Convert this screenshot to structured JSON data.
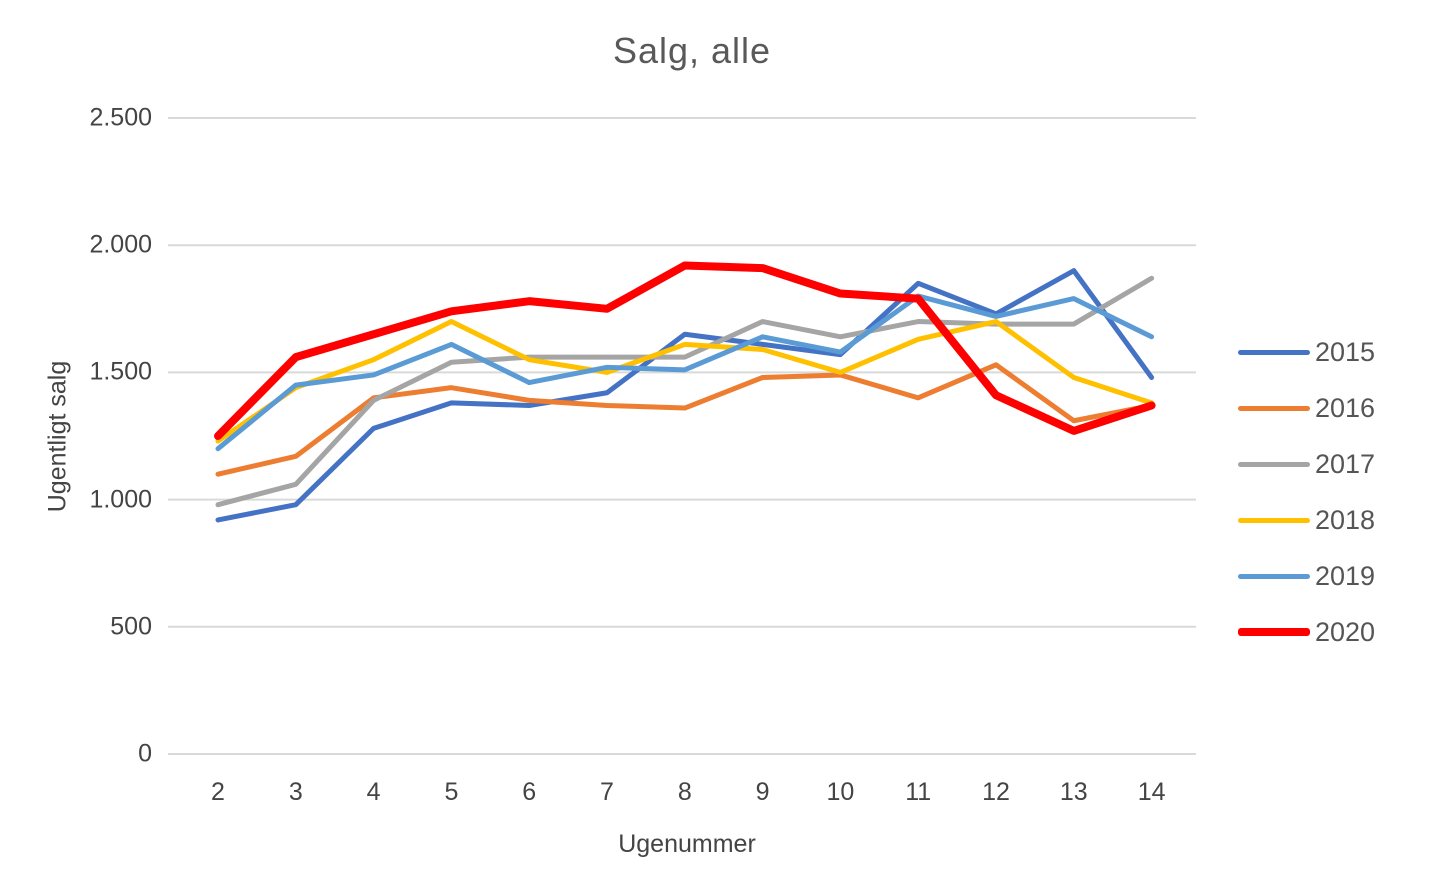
{
  "chart_data": {
    "type": "line",
    "title": "Salg, alle",
    "xlabel": "Ugenummer",
    "ylabel": "Ugentligt salg",
    "x": [
      2,
      3,
      4,
      5,
      6,
      7,
      8,
      9,
      10,
      11,
      12,
      13,
      14
    ],
    "x_tick_labels": [
      "2",
      "3",
      "4",
      "5",
      "6",
      "7",
      "8",
      "9",
      "10",
      "11",
      "12",
      "13",
      "14"
    ],
    "y_ticks": [
      0,
      500,
      1000,
      1500,
      2000,
      2500
    ],
    "y_tick_labels": [
      "0",
      "500",
      "1.000",
      "1.500",
      "2.000",
      "2.500"
    ],
    "ylim": [
      0,
      2500
    ],
    "grid": "horizontal",
    "gridline_color": "#d9d9d9",
    "legend_position": "right",
    "series": [
      {
        "name": "2015",
        "color": "#4472C4",
        "line_width": 5,
        "values": [
          920,
          980,
          1280,
          1380,
          1370,
          1420,
          1650,
          1610,
          1570,
          1850,
          1730,
          1900,
          1480
        ]
      },
      {
        "name": "2016",
        "color": "#ED7D31",
        "line_width": 5,
        "values": [
          1100,
          1170,
          1400,
          1440,
          1390,
          1370,
          1360,
          1480,
          1490,
          1400,
          1530,
          1310,
          1370
        ]
      },
      {
        "name": "2017",
        "color": "#A5A5A5",
        "line_width": 5,
        "values": [
          980,
          1060,
          1390,
          1540,
          1560,
          1560,
          1560,
          1700,
          1640,
          1700,
          1690,
          1690,
          1870
        ]
      },
      {
        "name": "2018",
        "color": "#FFC000",
        "line_width": 5,
        "values": [
          1230,
          1440,
          1550,
          1700,
          1550,
          1500,
          1610,
          1590,
          1500,
          1630,
          1700,
          1480,
          1380
        ]
      },
      {
        "name": "2019",
        "color": "#5B9BD5",
        "line_width": 5,
        "values": [
          1200,
          1450,
          1490,
          1610,
          1460,
          1520,
          1510,
          1640,
          1580,
          1800,
          1720,
          1790,
          1640
        ]
      },
      {
        "name": "2020",
        "color": "#FF0000",
        "line_width": 8,
        "values": [
          1250,
          1560,
          1650,
          1740,
          1780,
          1750,
          1920,
          1910,
          1810,
          1790,
          1410,
          1270,
          1370
        ]
      }
    ]
  }
}
